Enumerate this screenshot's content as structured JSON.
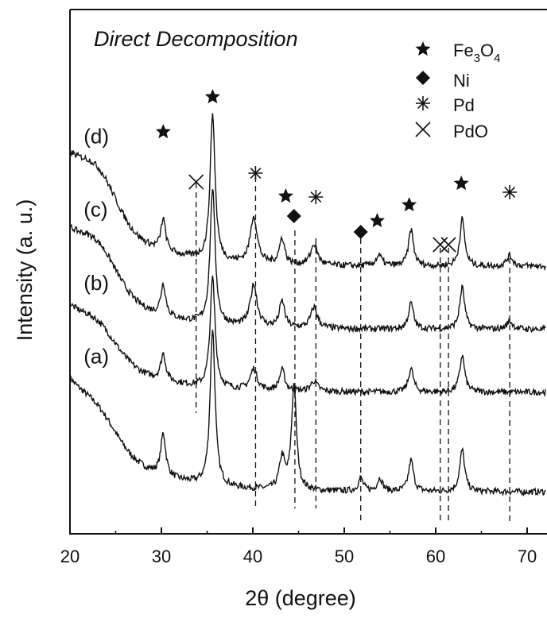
{
  "chart_data": {
    "type": "line",
    "title": "Direct Decomposition",
    "xlabel": "2θ (degree)",
    "ylabel": "Intensity (a. u.)",
    "xlim": [
      20,
      72
    ],
    "x_ticks": [
      20,
      30,
      40,
      50,
      60,
      70
    ],
    "y_ticks_shown": false,
    "legend": {
      "position": "top-right",
      "entries": [
        {
          "marker": "star",
          "label_main": "Fe",
          "sub1": "3",
          "mid": "O",
          "sub2": "4"
        },
        {
          "marker": "diamond",
          "label_main": "Ni"
        },
        {
          "marker": "asterisk",
          "label_main": "Pd"
        },
        {
          "marker": "cross",
          "label_main": "PdO"
        }
      ]
    },
    "series": [
      {
        "name": "(a)",
        "baseline": 0.08,
        "start_level": 0.28,
        "amorphous_hump": {
          "center": 23,
          "height": 0.05,
          "width": 3
        },
        "peaks": [
          [
            30.2,
            0.08,
            0.35
          ],
          [
            35.6,
            0.3,
            0.35
          ],
          [
            43.2,
            0.06,
            0.4
          ],
          [
            44.5,
            0.2,
            0.35
          ],
          [
            51.8,
            0.025,
            0.35
          ],
          [
            53.9,
            0.025,
            0.4
          ],
          [
            57.3,
            0.06,
            0.35
          ],
          [
            62.9,
            0.08,
            0.35
          ]
        ]
      },
      {
        "name": "(b)",
        "baseline": 0.27,
        "start_level": 0.42,
        "amorphous_hump": {
          "center": 23,
          "height": 0.05,
          "width": 3
        },
        "peaks": [
          [
            30.2,
            0.05,
            0.35
          ],
          [
            35.6,
            0.21,
            0.35
          ],
          [
            40.1,
            0.04,
            0.6
          ],
          [
            43.2,
            0.04,
            0.4
          ],
          [
            46.7,
            0.02,
            0.6
          ],
          [
            57.3,
            0.045,
            0.35
          ],
          [
            62.9,
            0.07,
            0.35
          ]
        ]
      },
      {
        "name": "(c)",
        "baseline": 0.39,
        "start_level": 0.56,
        "amorphous_hump": {
          "center": 23,
          "height": 0.07,
          "width": 3
        },
        "peaks": [
          [
            30.2,
            0.06,
            0.35
          ],
          [
            35.6,
            0.26,
            0.35
          ],
          [
            40.1,
            0.08,
            0.6
          ],
          [
            43.2,
            0.05,
            0.4
          ],
          [
            46.7,
            0.04,
            0.6
          ],
          [
            57.3,
            0.05,
            0.35
          ],
          [
            62.9,
            0.08,
            0.35
          ],
          [
            68.1,
            0.015,
            0.5
          ]
        ]
      },
      {
        "name": "(d)",
        "baseline": 0.51,
        "start_level": 0.7,
        "amorphous_hump": {
          "center": 23,
          "height": 0.08,
          "width": 3
        },
        "peaks": [
          [
            30.2,
            0.06,
            0.35
          ],
          [
            35.6,
            0.28,
            0.35
          ],
          [
            40.1,
            0.09,
            0.6
          ],
          [
            43.2,
            0.05,
            0.4
          ],
          [
            46.7,
            0.04,
            0.6
          ],
          [
            53.8,
            0.02,
            0.5
          ],
          [
            57.3,
            0.07,
            0.35
          ],
          [
            62.9,
            0.09,
            0.35
          ],
          [
            68.1,
            0.02,
            0.5
          ]
        ]
      }
    ],
    "peak_markers": [
      {
        "type": "star",
        "x": 30.2
      },
      {
        "type": "star",
        "x": 35.6
      },
      {
        "type": "cross",
        "x": 33.8
      },
      {
        "type": "asterisk",
        "x": 40.3
      },
      {
        "type": "star",
        "x": 43.6
      },
      {
        "type": "diamond",
        "x": 44.5
      },
      {
        "type": "asterisk",
        "x": 46.9
      },
      {
        "type": "diamond",
        "x": 51.8
      },
      {
        "type": "star",
        "x": 53.6
      },
      {
        "type": "star",
        "x": 57.1
      },
      {
        "type": "cross",
        "x": 60.5
      },
      {
        "type": "cross",
        "x": 61.4
      },
      {
        "type": "star",
        "x": 62.8
      },
      {
        "type": "asterisk",
        "x": 68.1
      }
    ],
    "reference_lines": [
      33.8,
      40.3,
      44.6,
      46.9,
      51.8,
      60.5,
      61.4,
      68.1
    ]
  }
}
